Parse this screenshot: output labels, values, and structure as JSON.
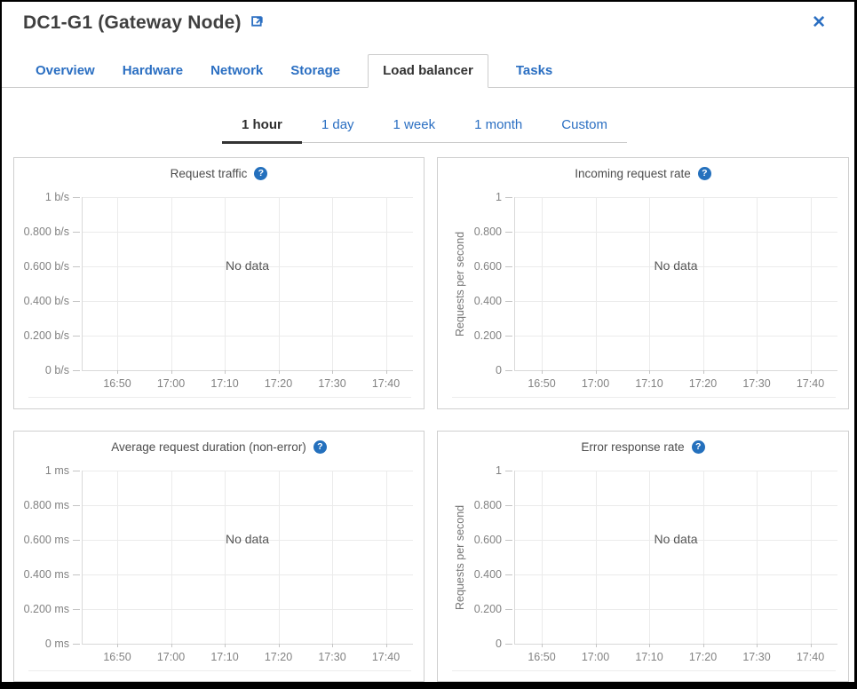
{
  "header": {
    "title": "DC1-G1 (Gateway Node)",
    "close_glyph": "✕",
    "external_link_icon": "external-link"
  },
  "tabs": [
    {
      "label": "Overview",
      "active": false
    },
    {
      "label": "Hardware",
      "active": false
    },
    {
      "label": "Network",
      "active": false
    },
    {
      "label": "Storage",
      "active": false
    },
    {
      "label": "Load balancer",
      "active": true
    },
    {
      "label": "Tasks",
      "active": false
    }
  ],
  "time_range": {
    "items": [
      {
        "label": "1 hour",
        "active": true
      },
      {
        "label": "1 day",
        "active": false
      },
      {
        "label": "1 week",
        "active": false
      },
      {
        "label": "1 month",
        "active": false
      },
      {
        "label": "Custom",
        "active": false
      }
    ]
  },
  "charts": [
    {
      "title": "Request traffic",
      "help_icon": "question-mark",
      "type": "line",
      "series": [],
      "no_data_label": "No data",
      "y_axis_label": "",
      "y_ticks": [
        "1 b/s",
        "0.800 b/s",
        "0.600 b/s",
        "0.400 b/s",
        "0.200 b/s",
        "0 b/s"
      ],
      "x_ticks": [
        "16:50",
        "17:00",
        "17:10",
        "17:20",
        "17:30",
        "17:40"
      ]
    },
    {
      "title": "Incoming request rate",
      "help_icon": "question-mark",
      "type": "line",
      "series": [],
      "no_data_label": "No data",
      "y_axis_label": "Requests per second",
      "y_ticks": [
        "1",
        "0.800",
        "0.600",
        "0.400",
        "0.200",
        "0"
      ],
      "x_ticks": [
        "16:50",
        "17:00",
        "17:10",
        "17:20",
        "17:30",
        "17:40"
      ]
    },
    {
      "title": "Average request duration (non-error)",
      "help_icon": "question-mark",
      "type": "line",
      "series": [],
      "no_data_label": "No data",
      "y_axis_label": "",
      "y_ticks": [
        "1 ms",
        "0.800 ms",
        "0.600 ms",
        "0.400 ms",
        "0.200 ms",
        "0 ms"
      ],
      "x_ticks": [
        "16:50",
        "17:00",
        "17:10",
        "17:20",
        "17:30",
        "17:40"
      ]
    },
    {
      "title": "Error response rate",
      "help_icon": "question-mark",
      "type": "line",
      "series": [],
      "no_data_label": "No data",
      "y_axis_label": "Requests per second",
      "y_ticks": [
        "1",
        "0.800",
        "0.600",
        "0.400",
        "0.200",
        "0"
      ],
      "x_ticks": [
        "16:50",
        "17:00",
        "17:10",
        "17:20",
        "17:30",
        "17:40"
      ]
    }
  ],
  "colors": {
    "accent_blue": "#2b6fc2",
    "help_icon_blue": "#2470bd",
    "active_tab_text": "#333333",
    "chart_title": "#4d4d4d",
    "tick_text": "#828282",
    "grid_line": "#ebebeb",
    "panel_border": "#cfcfcf"
  }
}
